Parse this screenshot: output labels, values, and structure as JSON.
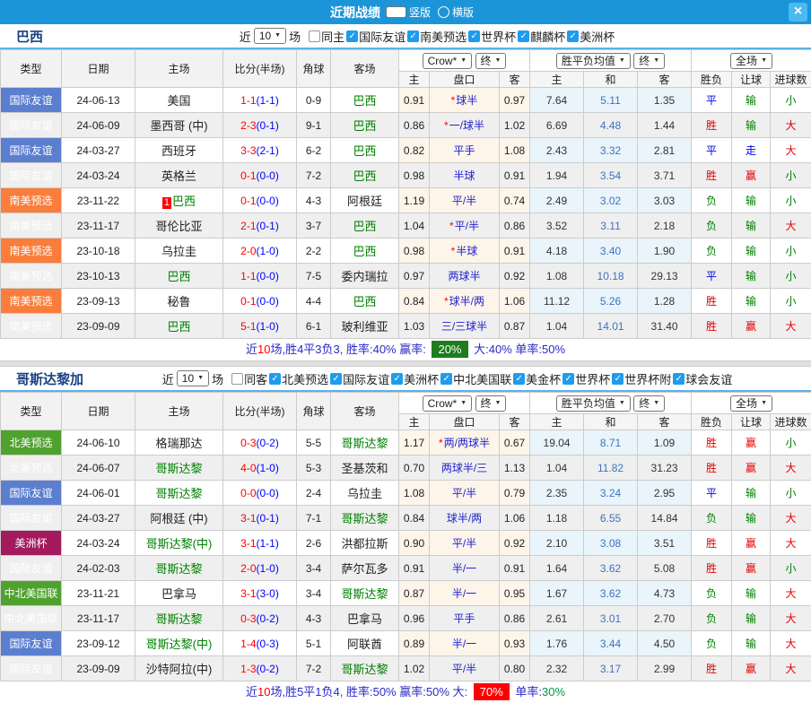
{
  "titlebar": {
    "title": "近期战绩",
    "radio_vertical": "竖版",
    "radio_vertical_selected": true,
    "radio_horizontal": "横版",
    "radio_horizontal_selected": false,
    "close": "×"
  },
  "colors": {
    "topbar": "#1c95d8",
    "close_button": "#4db9f2",
    "section_title": "#1a4184",
    "type_friendly_blue": "#5b7ecf",
    "type_south_america_orange": "#fa7d3b",
    "type_north_america_green": "#4fa22e",
    "type_america_cup_maroon": "#a31b5c",
    "focus_team_green": "#008000",
    "score_red": "#ff0000",
    "half_score_blue": "#0000ff",
    "handicap_blue": "#2222cc",
    "avg_draw_blue": "#3b74c2",
    "crow_cell_bg": "#fdf5ea",
    "avg_cell_bg": "#e9f4fb",
    "alt_row_bg": "#efefef",
    "win_red": "#e60000",
    "draw_blue": "#0000e0",
    "lose_green": "#008000",
    "badge_green_bg": "#1e7c1e",
    "badge_red_bg": "#ff0000"
  },
  "table_header": {
    "col_type": "类型",
    "col_date": "日期",
    "col_home": "主场",
    "col_score": "比分(半场)",
    "col_corner": "角球",
    "col_away": "客场",
    "odds_company": "Crow*",
    "final_label": "终",
    "avg_label": "胜平负均值",
    "scope_label": "全场",
    "sub": [
      "主",
      "盘口",
      "客",
      "主",
      "和",
      "客",
      "胜负",
      "让球",
      "进球数"
    ]
  },
  "sections": [
    {
      "team": "巴西",
      "filter": {
        "prefix": "近",
        "games": "10",
        "suffix": "场",
        "checkboxes": [
          {
            "label": "同主",
            "checked": false
          },
          {
            "label": "国际友谊",
            "checked": true
          },
          {
            "label": "南美预选",
            "checked": true
          },
          {
            "label": "世界杯",
            "checked": true
          },
          {
            "label": "麒麟杯",
            "checked": true
          },
          {
            "label": "美洲杯",
            "checked": true
          }
        ]
      },
      "rows": [
        {
          "type": "国际友谊",
          "tc": "blue",
          "date": "24-06-13",
          "home": "美国",
          "hf": false,
          "badge": "",
          "score": "1-1",
          "half": "(1-1)",
          "corner": "0-9",
          "away": "巴西",
          "af": true,
          "o1": "0.91",
          "star": true,
          "pk": "球半",
          "o2": "0.97",
          "a1": "7.64",
          "a2": "5.11",
          "a3": "1.35",
          "r1": "平",
          "r2": "输",
          "r3": "小"
        },
        {
          "type": "国际友谊",
          "tc": "blue",
          "date": "24-06-09",
          "home": "墨西哥 (中)",
          "hf": false,
          "badge": "",
          "score": "2-3",
          "half": "(0-1)",
          "corner": "9-1",
          "away": "巴西",
          "af": true,
          "o1": "0.86",
          "star": true,
          "pk": "一/球半",
          "o2": "1.02",
          "a1": "6.69",
          "a2": "4.48",
          "a3": "1.44",
          "r1": "胜",
          "r2": "输",
          "r3": "大"
        },
        {
          "type": "国际友谊",
          "tc": "blue",
          "date": "24-03-27",
          "home": "西班牙",
          "hf": false,
          "badge": "",
          "score": "3-3",
          "half": "(2-1)",
          "corner": "6-2",
          "away": "巴西",
          "af": true,
          "o1": "0.82",
          "star": false,
          "pk": "平手",
          "o2": "1.08",
          "a1": "2.43",
          "a2": "3.32",
          "a3": "2.81",
          "r1": "平",
          "r2": "走",
          "r3": "大"
        },
        {
          "type": "国际友谊",
          "tc": "blue",
          "date": "24-03-24",
          "home": "英格兰",
          "hf": false,
          "badge": "",
          "score": "0-1",
          "half": "(0-0)",
          "corner": "7-2",
          "away": "巴西",
          "af": true,
          "o1": "0.98",
          "star": false,
          "pk": "半球",
          "o2": "0.91",
          "a1": "1.94",
          "a2": "3.54",
          "a3": "3.71",
          "r1": "胜",
          "r2": "赢",
          "r3": "小"
        },
        {
          "type": "南美预选",
          "tc": "orange",
          "date": "23-11-22",
          "home": "巴西",
          "hf": true,
          "badge": "1",
          "score": "0-1",
          "half": "(0-0)",
          "corner": "4-3",
          "away": "阿根廷",
          "af": false,
          "o1": "1.19",
          "star": false,
          "pk": "平/半",
          "o2": "0.74",
          "a1": "2.49",
          "a2": "3.02",
          "a3": "3.03",
          "r1": "负",
          "r2": "输",
          "r3": "小"
        },
        {
          "type": "南美预选",
          "tc": "orange",
          "date": "23-11-17",
          "home": "哥伦比亚",
          "hf": false,
          "badge": "",
          "score": "2-1",
          "half": "(0-1)",
          "corner": "3-7",
          "away": "巴西",
          "af": true,
          "o1": "1.04",
          "star": true,
          "pk": "平/半",
          "o2": "0.86",
          "a1": "3.52",
          "a2": "3.11",
          "a3": "2.18",
          "r1": "负",
          "r2": "输",
          "r3": "大"
        },
        {
          "type": "南美预选",
          "tc": "orange",
          "date": "23-10-18",
          "home": "乌拉圭",
          "hf": false,
          "badge": "",
          "score": "2-0",
          "half": "(1-0)",
          "corner": "2-2",
          "away": "巴西",
          "af": true,
          "o1": "0.98",
          "star": true,
          "pk": "半球",
          "o2": "0.91",
          "a1": "4.18",
          "a2": "3.40",
          "a3": "1.90",
          "r1": "负",
          "r2": "输",
          "r3": "小"
        },
        {
          "type": "南美预选",
          "tc": "orange",
          "date": "23-10-13",
          "home": "巴西",
          "hf": true,
          "badge": "",
          "score": "1-1",
          "half": "(0-0)",
          "corner": "7-5",
          "away": "委内瑞拉",
          "af": false,
          "o1": "0.97",
          "star": false,
          "pk": "两球半",
          "o2": "0.92",
          "a1": "1.08",
          "a2": "10.18",
          "a3": "29.13",
          "r1": "平",
          "r2": "输",
          "r3": "小"
        },
        {
          "type": "南美预选",
          "tc": "orange",
          "date": "23-09-13",
          "home": "秘鲁",
          "hf": false,
          "badge": "",
          "score": "0-1",
          "half": "(0-0)",
          "corner": "4-4",
          "away": "巴西",
          "af": true,
          "o1": "0.84",
          "star": true,
          "pk": "球半/两",
          "o2": "1.06",
          "a1": "11.12",
          "a2": "5.26",
          "a3": "1.28",
          "r1": "胜",
          "r2": "输",
          "r3": "小"
        },
        {
          "type": "南美预选",
          "tc": "orange",
          "date": "23-09-09",
          "home": "巴西",
          "hf": true,
          "badge": "",
          "score": "5-1",
          "half": "(1-0)",
          "corner": "6-1",
          "away": "玻利维亚",
          "af": false,
          "o1": "1.03",
          "star": false,
          "pk": "三/三球半",
          "o2": "0.87",
          "a1": "1.04",
          "a2": "14.01",
          "a3": "31.40",
          "r1": "胜",
          "r2": "赢",
          "r3": "大"
        }
      ],
      "summary": [
        {
          "t": "近",
          "c": "b"
        },
        {
          "t": "10",
          "c": "r"
        },
        {
          "t": "场,胜4平3负3, 胜率:",
          "c": "b"
        },
        {
          "t": "40%",
          "c": "b"
        },
        {
          "t": " 赢率: ",
          "c": "b"
        },
        {
          "t": "20%",
          "c": "bg"
        },
        {
          "t": " 大:",
          "c": "b"
        },
        {
          "t": "40%",
          "c": "b"
        },
        {
          "t": " 单率:",
          "c": "b"
        },
        {
          "t": "50%",
          "c": "b"
        }
      ]
    },
    {
      "team": "哥斯达黎加",
      "filter": {
        "prefix": "近",
        "games": "10",
        "suffix": "场",
        "checkboxes": [
          {
            "label": "同客",
            "checked": false
          },
          {
            "label": "北美预选",
            "checked": true
          },
          {
            "label": "国际友谊",
            "checked": true
          },
          {
            "label": "美洲杯",
            "checked": true
          },
          {
            "label": "中北美国联",
            "checked": true
          },
          {
            "label": "美金杯",
            "checked": true
          },
          {
            "label": "世界杯",
            "checked": true
          },
          {
            "label": "世界杯附",
            "checked": true
          },
          {
            "label": "球会友谊",
            "checked": true
          }
        ]
      },
      "rows": [
        {
          "type": "北美预选",
          "tc": "green",
          "date": "24-06-10",
          "home": "格瑞那达",
          "hf": false,
          "badge": "",
          "score": "0-3",
          "half": "(0-2)",
          "corner": "5-5",
          "away": "哥斯达黎",
          "af": true,
          "o1": "1.17",
          "star": true,
          "pk": "两/两球半",
          "o2": "0.67",
          "a1": "19.04",
          "a2": "8.71",
          "a3": "1.09",
          "r1": "胜",
          "r2": "赢",
          "r3": "小"
        },
        {
          "type": "北美预选",
          "tc": "green",
          "date": "24-06-07",
          "home": "哥斯达黎",
          "hf": true,
          "badge": "",
          "score": "4-0",
          "half": "(1-0)",
          "corner": "5-3",
          "away": "圣基茨和",
          "af": false,
          "o1": "0.70",
          "star": false,
          "pk": "两球半/三",
          "o2": "1.13",
          "a1": "1.04",
          "a2": "11.82",
          "a3": "31.23",
          "r1": "胜",
          "r2": "赢",
          "r3": "大"
        },
        {
          "type": "国际友谊",
          "tc": "blue",
          "date": "24-06-01",
          "home": "哥斯达黎",
          "hf": true,
          "badge": "",
          "score": "0-0",
          "half": "(0-0)",
          "corner": "2-4",
          "away": "乌拉圭",
          "af": false,
          "o1": "1.08",
          "star": false,
          "pk": "平/半",
          "o2": "0.79",
          "a1": "2.35",
          "a2": "3.24",
          "a3": "2.95",
          "r1": "平",
          "r2": "输",
          "r3": "小"
        },
        {
          "type": "国际友谊",
          "tc": "blue",
          "date": "24-03-27",
          "home": "阿根廷 (中)",
          "hf": false,
          "badge": "",
          "score": "3-1",
          "half": "(0-1)",
          "corner": "7-1",
          "away": "哥斯达黎",
          "af": true,
          "o1": "0.84",
          "star": false,
          "pk": "球半/两",
          "o2": "1.06",
          "a1": "1.18",
          "a2": "6.55",
          "a3": "14.84",
          "r1": "负",
          "r2": "输",
          "r3": "大"
        },
        {
          "type": "美洲杯",
          "tc": "maroon",
          "date": "24-03-24",
          "home": "哥斯达黎(中)",
          "hf": true,
          "badge": "",
          "score": "3-1",
          "half": "(1-1)",
          "corner": "2-6",
          "away": "洪都拉斯",
          "af": false,
          "o1": "0.90",
          "star": false,
          "pk": "平/半",
          "o2": "0.92",
          "a1": "2.10",
          "a2": "3.08",
          "a3": "3.51",
          "r1": "胜",
          "r2": "赢",
          "r3": "大"
        },
        {
          "type": "国际友谊",
          "tc": "blue",
          "date": "24-02-03",
          "home": "哥斯达黎",
          "hf": true,
          "badge": "",
          "score": "2-0",
          "half": "(1-0)",
          "corner": "3-4",
          "away": "萨尔瓦多",
          "af": false,
          "o1": "0.91",
          "star": false,
          "pk": "半/一",
          "o2": "0.91",
          "a1": "1.64",
          "a2": "3.62",
          "a3": "5.08",
          "r1": "胜",
          "r2": "赢",
          "r3": "小"
        },
        {
          "type": "中北美国联",
          "tc": "green",
          "date": "23-11-21",
          "home": "巴拿马",
          "hf": false,
          "badge": "",
          "score": "3-1",
          "half": "(3-0)",
          "corner": "3-4",
          "away": "哥斯达黎",
          "af": true,
          "o1": "0.87",
          "star": false,
          "pk": "半/一",
          "o2": "0.95",
          "a1": "1.67",
          "a2": "3.62",
          "a3": "4.73",
          "r1": "负",
          "r2": "输",
          "r3": "大"
        },
        {
          "type": "中北美国联",
          "tc": "green",
          "date": "23-11-17",
          "home": "哥斯达黎",
          "hf": true,
          "badge": "",
          "score": "0-3",
          "half": "(0-2)",
          "corner": "4-3",
          "away": "巴拿马",
          "af": false,
          "o1": "0.96",
          "star": false,
          "pk": "平手",
          "o2": "0.86",
          "a1": "2.61",
          "a2": "3.01",
          "a3": "2.70",
          "r1": "负",
          "r2": "输",
          "r3": "大"
        },
        {
          "type": "国际友谊",
          "tc": "blue",
          "date": "23-09-12",
          "home": "哥斯达黎(中)",
          "hf": true,
          "badge": "",
          "score": "1-4",
          "half": "(0-3)",
          "corner": "5-1",
          "away": "阿联酋",
          "af": false,
          "o1": "0.89",
          "star": false,
          "pk": "半/一",
          "o2": "0.93",
          "a1": "1.76",
          "a2": "3.44",
          "a3": "4.50",
          "r1": "负",
          "r2": "输",
          "r3": "大"
        },
        {
          "type": "国际友谊",
          "tc": "blue",
          "date": "23-09-09",
          "home": "沙特阿拉(中)",
          "hf": false,
          "badge": "",
          "score": "1-3",
          "half": "(0-2)",
          "corner": "7-2",
          "away": "哥斯达黎",
          "af": true,
          "o1": "1.02",
          "star": false,
          "pk": "平/半",
          "o2": "0.80",
          "a1": "2.32",
          "a2": "3.17",
          "a3": "2.99",
          "r1": "胜",
          "r2": "赢",
          "r3": "大"
        }
      ],
      "summary": [
        {
          "t": "近",
          "c": "b"
        },
        {
          "t": "10",
          "c": "r"
        },
        {
          "t": "场,胜5平1负4, 胜率:",
          "c": "b"
        },
        {
          "t": "50%",
          "c": "b"
        },
        {
          "t": " 赢率:",
          "c": "b"
        },
        {
          "t": "50%",
          "c": "b"
        },
        {
          "t": " 大: ",
          "c": "b"
        },
        {
          "t": "70%",
          "c": "br"
        },
        {
          "t": " 单率:",
          "c": "b"
        },
        {
          "t": "30%",
          "c": "g"
        }
      ]
    }
  ]
}
